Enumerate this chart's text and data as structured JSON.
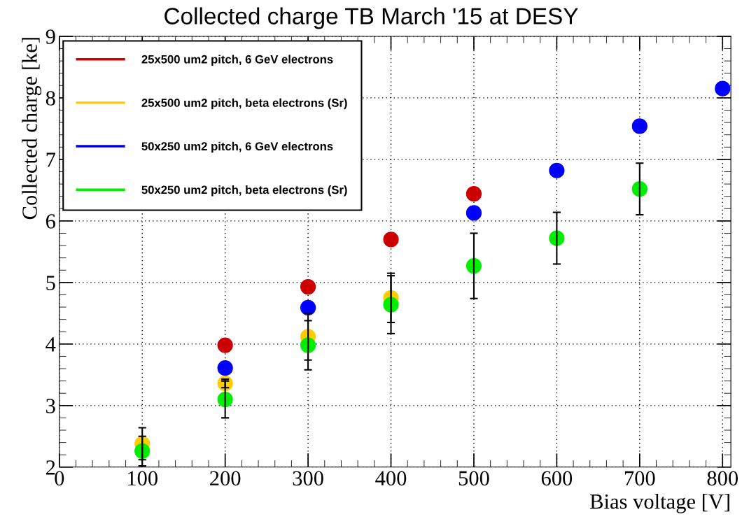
{
  "chart_data": {
    "type": "scatter",
    "title": "Collected charge TB March '15 at DESY",
    "xlabel": "Bias voltage [V]",
    "ylabel": "Collected charge [ke]",
    "xlim": [
      0,
      810
    ],
    "xticks": [
      0,
      100,
      200,
      300,
      400,
      500,
      600,
      700,
      800
    ],
    "ylim": [
      2,
      9
    ],
    "yticks": [
      2,
      3,
      4,
      5,
      6,
      7,
      8,
      9
    ],
    "grid": true,
    "legend": "top left",
    "marker": "circle",
    "series": [
      {
        "name": "25x500 um2 pitch, 6 GeV electrons",
        "color": "#cc0000",
        "x": [
          200,
          300,
          400,
          500
        ],
        "values": [
          3.98,
          4.93,
          5.7,
          6.44
        ]
      },
      {
        "name": "25x500 um2 pitch, beta electrons (Sr)",
        "color": "#ffcc00",
        "x": [
          100,
          200,
          300,
          400
        ],
        "values": [
          2.38,
          3.36,
          4.12,
          4.75
        ],
        "errors": [
          0.26,
          0.07,
          0.38,
          0.4
        ]
      },
      {
        "name": "50x250 um2 pitch, 6 GeV electrons",
        "color": "#0000ff",
        "x": [
          200,
          300,
          500,
          600,
          700,
          800
        ],
        "values": [
          3.61,
          4.59,
          6.13,
          6.82,
          7.54,
          8.15
        ]
      },
      {
        "name": "50x250 um2 pitch, beta electrons (Sr)",
        "color": "#00ee00",
        "x": [
          100,
          200,
          300,
          400,
          500,
          600,
          700
        ],
        "values": [
          2.26,
          3.1,
          3.98,
          4.64,
          5.27,
          5.72,
          6.52
        ],
        "errors": [
          0.24,
          0.3,
          0.4,
          0.47,
          0.53,
          0.42,
          0.42
        ]
      }
    ]
  }
}
